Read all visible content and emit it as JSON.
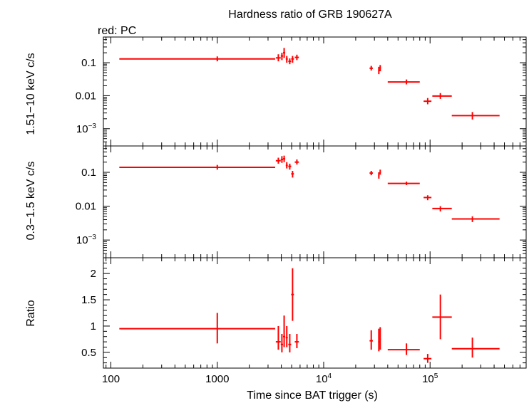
{
  "chart_data": {
    "type": "scatter",
    "title": "Hardness ratio of GRB 190627A",
    "subtitle": "red: PC",
    "xlabel": "Time since BAT trigger (s)",
    "xscale": "log",
    "xlim": [
      85,
      800000
    ],
    "x_ticks": [
      {
        "v": 100,
        "label": "100"
      },
      {
        "v": 1000,
        "label": "1000"
      },
      {
        "v": 10000,
        "label": "10",
        "sup": "4"
      },
      {
        "v": 100000,
        "label": "10",
        "sup": "5"
      }
    ],
    "series_color": "#ff0000",
    "panels": [
      {
        "ylabel": "1.51−10 keV c/s",
        "yscale": "log",
        "ylim": [
          0.0003,
          0.6
        ],
        "y_ticks": [
          {
            "v": 0.1,
            "label": "0.1"
          },
          {
            "v": 0.01,
            "label": "0.01"
          },
          {
            "v": 0.001,
            "label": "10",
            "sup": "−3"
          }
        ],
        "points": [
          {
            "x": 1000,
            "xlo": 120,
            "xhi": 3500,
            "y": 0.13,
            "ylo": 0.11,
            "yhi": 0.155
          },
          {
            "x": 3750,
            "xlo": 3550,
            "xhi": 3950,
            "y": 0.14,
            "ylo": 0.11,
            "yhi": 0.18
          },
          {
            "x": 4050,
            "xlo": 3950,
            "xhi": 4150,
            "y": 0.16,
            "ylo": 0.12,
            "yhi": 0.2
          },
          {
            "x": 4250,
            "xlo": 4150,
            "xhi": 4350,
            "y": 0.2,
            "ylo": 0.14,
            "yhi": 0.28
          },
          {
            "x": 4500,
            "xlo": 4400,
            "xhi": 4600,
            "y": 0.13,
            "ylo": 0.1,
            "yhi": 0.16
          },
          {
            "x": 4800,
            "xlo": 4650,
            "xhi": 4950,
            "y": 0.11,
            "ylo": 0.09,
            "yhi": 0.135
          },
          {
            "x": 5100,
            "xlo": 4950,
            "xhi": 5250,
            "y": 0.13,
            "ylo": 0.1,
            "yhi": 0.16
          },
          {
            "x": 5600,
            "xlo": 5350,
            "xhi": 5850,
            "y": 0.145,
            "ylo": 0.12,
            "yhi": 0.175
          },
          {
            "x": 28000,
            "xlo": 27000,
            "xhi": 29000,
            "y": 0.068,
            "ylo": 0.058,
            "yhi": 0.08
          },
          {
            "x": 33000,
            "xlo": 32500,
            "xhi": 33500,
            "y": 0.058,
            "ylo": 0.045,
            "yhi": 0.075
          },
          {
            "x": 34000,
            "xlo": 33500,
            "xhi": 34500,
            "y": 0.068,
            "ylo": 0.055,
            "yhi": 0.085
          },
          {
            "x": 60000,
            "xlo": 40000,
            "xhi": 80000,
            "y": 0.026,
            "ylo": 0.022,
            "yhi": 0.031
          },
          {
            "x": 95000,
            "xlo": 87000,
            "xhi": 103000,
            "y": 0.0068,
            "ylo": 0.0055,
            "yhi": 0.0085
          },
          {
            "x": 125000,
            "xlo": 105000,
            "xhi": 160000,
            "y": 0.0098,
            "ylo": 0.008,
            "yhi": 0.012
          },
          {
            "x": 250000,
            "xlo": 160000,
            "xhi": 450000,
            "y": 0.0025,
            "ylo": 0.0019,
            "yhi": 0.0032
          }
        ]
      },
      {
        "ylabel": "0.3−1.5 keV c/s",
        "yscale": "log",
        "ylim": [
          0.0003,
          0.6
        ],
        "y_ticks": [
          {
            "v": 0.1,
            "label": "0.1"
          },
          {
            "v": 0.01,
            "label": "0.01"
          },
          {
            "v": 0.001,
            "label": "10",
            "sup": "−3"
          }
        ],
        "points": [
          {
            "x": 1000,
            "xlo": 120,
            "xhi": 3500,
            "y": 0.14,
            "ylo": 0.12,
            "yhi": 0.165
          },
          {
            "x": 3750,
            "xlo": 3550,
            "xhi": 3950,
            "y": 0.22,
            "ylo": 0.18,
            "yhi": 0.27
          },
          {
            "x": 4050,
            "xlo": 3950,
            "xhi": 4150,
            "y": 0.24,
            "ylo": 0.19,
            "yhi": 0.3
          },
          {
            "x": 4250,
            "xlo": 4150,
            "xhi": 4350,
            "y": 0.25,
            "ylo": 0.2,
            "yhi": 0.31
          },
          {
            "x": 4500,
            "xlo": 4400,
            "xhi": 4600,
            "y": 0.16,
            "ylo": 0.13,
            "yhi": 0.2
          },
          {
            "x": 4800,
            "xlo": 4650,
            "xhi": 4950,
            "y": 0.15,
            "ylo": 0.12,
            "yhi": 0.18
          },
          {
            "x": 5100,
            "xlo": 4950,
            "xhi": 5250,
            "y": 0.09,
            "ylo": 0.07,
            "yhi": 0.11
          },
          {
            "x": 5600,
            "xlo": 5350,
            "xhi": 5850,
            "y": 0.2,
            "ylo": 0.17,
            "yhi": 0.24
          },
          {
            "x": 28000,
            "xlo": 27000,
            "xhi": 29000,
            "y": 0.095,
            "ylo": 0.082,
            "yhi": 0.11
          },
          {
            "x": 33000,
            "xlo": 32500,
            "xhi": 33500,
            "y": 0.08,
            "ylo": 0.065,
            "yhi": 0.1
          },
          {
            "x": 34000,
            "xlo": 33500,
            "xhi": 34500,
            "y": 0.1,
            "ylo": 0.085,
            "yhi": 0.12
          },
          {
            "x": 60000,
            "xlo": 40000,
            "xhi": 80000,
            "y": 0.047,
            "ylo": 0.042,
            "yhi": 0.053
          },
          {
            "x": 95000,
            "xlo": 87000,
            "xhi": 103000,
            "y": 0.018,
            "ylo": 0.015,
            "yhi": 0.021
          },
          {
            "x": 125000,
            "xlo": 105000,
            "xhi": 160000,
            "y": 0.0085,
            "ylo": 0.007,
            "yhi": 0.01
          },
          {
            "x": 250000,
            "xlo": 160000,
            "xhi": 450000,
            "y": 0.0042,
            "ylo": 0.0034,
            "yhi": 0.005
          }
        ]
      },
      {
        "ylabel": "Ratio",
        "yscale": "linear",
        "ylim": [
          0.2,
          2.3
        ],
        "y_ticks": [
          {
            "v": 0.5,
            "label": "0.5"
          },
          {
            "v": 1,
            "label": "1"
          },
          {
            "v": 1.5,
            "label": "1.5"
          },
          {
            "v": 2,
            "label": "2"
          }
        ],
        "points": [
          {
            "x": 1000,
            "xlo": 120,
            "xhi": 3500,
            "y": 0.95,
            "ylo": 0.67,
            "yhi": 1.25
          },
          {
            "x": 3750,
            "xlo": 3550,
            "xhi": 3950,
            "y": 0.7,
            "ylo": 0.55,
            "yhi": 1.0
          },
          {
            "x": 4050,
            "xlo": 3950,
            "xhi": 4150,
            "y": 0.65,
            "ylo": 0.5,
            "yhi": 0.85
          },
          {
            "x": 4250,
            "xlo": 4150,
            "xhi": 4350,
            "y": 0.8,
            "ylo": 0.6,
            "yhi": 1.2
          },
          {
            "x": 4500,
            "xlo": 4400,
            "xhi": 4600,
            "y": 0.78,
            "ylo": 0.6,
            "yhi": 1.0
          },
          {
            "x": 4800,
            "xlo": 4650,
            "xhi": 4950,
            "y": 0.65,
            "ylo": 0.5,
            "yhi": 0.85
          },
          {
            "x": 5100,
            "xlo": 4950,
            "xhi": 5250,
            "y": 1.6,
            "ylo": 1.1,
            "yhi": 2.1
          },
          {
            "x": 5600,
            "xlo": 5350,
            "xhi": 5850,
            "y": 0.7,
            "ylo": 0.58,
            "yhi": 0.85
          },
          {
            "x": 28000,
            "xlo": 27000,
            "xhi": 29000,
            "y": 0.72,
            "ylo": 0.55,
            "yhi": 0.92
          },
          {
            "x": 33000,
            "xlo": 32500,
            "xhi": 33500,
            "y": 0.7,
            "ylo": 0.52,
            "yhi": 0.95
          },
          {
            "x": 34000,
            "xlo": 33500,
            "xhi": 34500,
            "y": 0.75,
            "ylo": 0.55,
            "yhi": 0.98
          },
          {
            "x": 60000,
            "xlo": 40000,
            "xhi": 80000,
            "y": 0.55,
            "ylo": 0.45,
            "yhi": 0.67
          },
          {
            "x": 95000,
            "xlo": 87000,
            "xhi": 103000,
            "y": 0.38,
            "ylo": 0.3,
            "yhi": 0.47
          },
          {
            "x": 125000,
            "xlo": 105000,
            "xhi": 160000,
            "y": 1.17,
            "ylo": 0.75,
            "yhi": 1.6
          },
          {
            "x": 250000,
            "xlo": 160000,
            "xhi": 450000,
            "y": 0.57,
            "ylo": 0.4,
            "yhi": 0.78
          }
        ]
      }
    ]
  }
}
